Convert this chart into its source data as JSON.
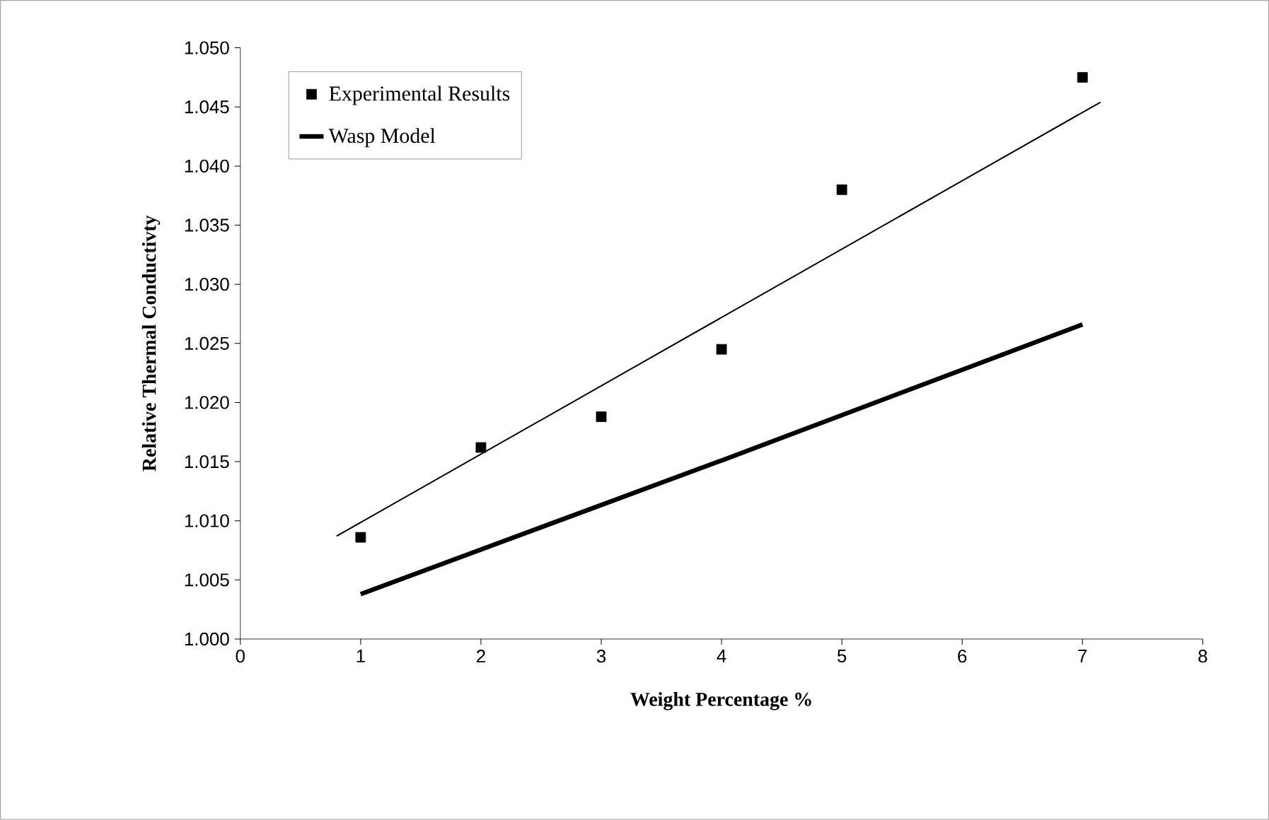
{
  "chart_data": {
    "type": "scatter",
    "xlabel": "Weight Percentage %",
    "ylabel": "Relative Thermal Conductivty",
    "xlim": [
      0,
      8
    ],
    "xticks": [
      0,
      1,
      2,
      3,
      4,
      5,
      6,
      7,
      8
    ],
    "ylim": [
      1.0,
      1.05
    ],
    "yticks": [
      {
        "value": 1.0,
        "label": "1.000"
      },
      {
        "value": 1.005,
        "label": "1.005"
      },
      {
        "value": 1.01,
        "label": "1.010"
      },
      {
        "value": 1.015,
        "label": "1.015"
      },
      {
        "value": 1.02,
        "label": "1.020"
      },
      {
        "value": 1.025,
        "label": "1.025"
      },
      {
        "value": 1.03,
        "label": "1.030"
      },
      {
        "value": 1.035,
        "label": "1.035"
      },
      {
        "value": 1.04,
        "label": "1.040"
      },
      {
        "value": 1.045,
        "label": "1.045"
      },
      {
        "value": 1.05,
        "label": "1.050"
      }
    ],
    "grid": false,
    "legend": "top left",
    "series": [
      {
        "name": "Experimental Results",
        "marker": "square",
        "color": "#000000",
        "x": [
          1,
          2,
          3,
          4,
          5,
          7
        ],
        "values": [
          1.0086,
          1.0162,
          1.0188,
          1.0245,
          1.038,
          1.0475
        ]
      },
      {
        "name": "Wasp Model",
        "type": "line",
        "marker": "none",
        "line_style": "solid",
        "color": "#000000",
        "x": [
          1,
          4,
          7
        ],
        "values": [
          1.0038,
          1.0151,
          1.0266
        ]
      },
      {
        "type": "line",
        "marker": "none",
        "line_style": "solid",
        "color": "#000000",
        "x": [
          0.8,
          7.15
        ],
        "values": [
          1.0087,
          1.0454
        ]
      }
    ]
  }
}
